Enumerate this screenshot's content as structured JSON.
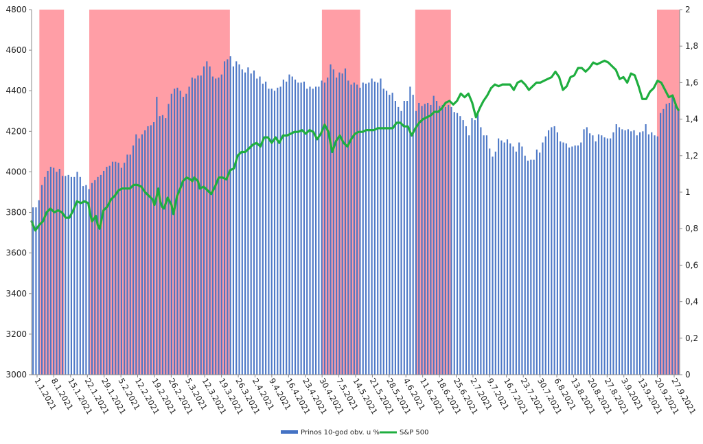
{
  "chart_data": {
    "type": "bar+line",
    "title": "",
    "y_left": {
      "min": 3000,
      "max": 4800,
      "step": 200,
      "ticks": [
        "3000",
        "3200",
        "3400",
        "3600",
        "3800",
        "4000",
        "4200",
        "4400",
        "4600",
        "4800"
      ]
    },
    "y_right": {
      "min": 0,
      "max": 2,
      "step": 0.2,
      "ticks": [
        "0",
        "0,2",
        "0,4",
        "0,6",
        "0,8",
        "1",
        "1,2",
        "1,4",
        "1,6",
        "1,8",
        "2"
      ]
    },
    "x_labels": [
      "1.1.2021",
      "8.1.2021",
      "15.1.2021",
      "22.1.2021",
      "29.1.2021",
      "5.2.2021",
      "12.2.2021",
      "19.2.2021",
      "26.2.2021",
      "5.3.2021",
      "12.3.2021",
      "19.3.2021",
      "26.3.2021",
      "2.4.2021",
      "9.4.2021",
      "16.4.2021",
      "23.4.2021",
      "30.4.2021",
      "7.5.2021",
      "14.5.2021",
      "21.5.2021",
      "28.5.2021",
      "4.6.2021",
      "11.6.2021",
      "18.6.2021",
      "25.6.2021",
      "2.7.2021",
      "9.7.2021",
      "16.7.2021",
      "23.7.2021",
      "30.7.2021",
      "6.8.2021",
      "13.8.2021",
      "20.8.2021",
      "27.8.2021",
      "3.9.2021",
      "13.9.2021",
      "20.9.2021",
      "27.9.2021"
    ],
    "bar_series": {
      "name": "Prinos 10-god obv. u %",
      "color": "#4472C4",
      "axis": "left",
      "values": [
        3825,
        3825,
        3860,
        3935,
        3975,
        4005,
        4025,
        4020,
        4000,
        4015,
        3980,
        3980,
        3985,
        3975,
        3975,
        4000,
        3975,
        3930,
        3935,
        3915,
        3945,
        3960,
        3975,
        3985,
        4005,
        4025,
        4030,
        4050,
        4050,
        4045,
        4020,
        4045,
        4085,
        4085,
        4130,
        4185,
        4165,
        4185,
        4205,
        4225,
        4230,
        4245,
        4370,
        4275,
        4280,
        4265,
        4335,
        4385,
        4410,
        4415,
        4400,
        4370,
        4385,
        4420,
        4465,
        4460,
        4475,
        4475,
        4520,
        4545,
        4520,
        4470,
        4460,
        4465,
        4480,
        4545,
        4555,
        4570,
        4520,
        4545,
        4530,
        4505,
        4490,
        4515,
        4485,
        4500,
        4460,
        4470,
        4435,
        4445,
        4410,
        4410,
        4400,
        4415,
        4420,
        4455,
        4445,
        4480,
        4470,
        4455,
        4440,
        4440,
        4445,
        4410,
        4420,
        4410,
        4420,
        4420,
        4450,
        4440,
        4465,
        4530,
        4505,
        4465,
        4490,
        4485,
        4510,
        4450,
        4430,
        4440,
        4430,
        4415,
        4440,
        4435,
        4440,
        4460,
        4445,
        4440,
        4460,
        4410,
        4400,
        4380,
        4390,
        4350,
        4320,
        4300,
        4350,
        4350,
        4420,
        4380,
        4300,
        4340,
        4325,
        4335,
        4340,
        4330,
        4375,
        4350,
        4325,
        4330,
        4320,
        4330,
        4320,
        4295,
        4290,
        4275,
        4255,
        4225,
        4180,
        4265,
        4255,
        4285,
        4220,
        4180,
        4180,
        4115,
        4075,
        4100,
        4165,
        4155,
        4145,
        4160,
        4140,
        4125,
        4100,
        4145,
        4125,
        4080,
        4055,
        4060,
        4060,
        4110,
        4095,
        4145,
        4175,
        4205,
        4220,
        4225,
        4195,
        4150,
        4145,
        4140,
        4120,
        4125,
        4130,
        4130,
        4145,
        4210,
        4220,
        4190,
        4180,
        4150,
        4185,
        4180,
        4170,
        4165,
        4165,
        4195,
        4235,
        4220,
        4210,
        4205,
        4210,
        4200,
        4205,
        4180,
        4195,
        4200,
        4235,
        4185,
        4195,
        4180,
        4175,
        4290,
        4310,
        4335,
        4340,
        4370,
        4330,
        4310
      ]
    },
    "line_series": {
      "name": "S&P 500",
      "color": "#1FAE3F",
      "axis": "right",
      "points": [
        [
          0,
          0.84
        ],
        [
          2,
          0.79
        ],
        [
          4,
          0.82
        ],
        [
          6,
          0.84
        ],
        [
          8,
          0.89
        ],
        [
          10,
          0.91
        ],
        [
          12,
          0.89
        ],
        [
          14,
          0.9
        ],
        [
          16,
          0.89
        ],
        [
          18,
          0.86
        ],
        [
          20,
          0.86
        ],
        [
          22,
          0.9
        ],
        [
          24,
          0.95
        ],
        [
          26,
          0.94
        ],
        [
          28,
          0.95
        ],
        [
          30,
          0.94
        ],
        [
          31,
          0.88
        ],
        [
          32,
          0.84
        ],
        [
          34,
          0.87
        ],
        [
          35,
          0.82
        ],
        [
          36,
          0.8
        ],
        [
          38,
          0.9
        ],
        [
          40,
          0.92
        ],
        [
          42,
          0.96
        ],
        [
          44,
          0.98
        ],
        [
          46,
          1.01
        ],
        [
          48,
          1.02
        ],
        [
          50,
          1.02
        ],
        [
          52,
          1.02
        ],
        [
          54,
          1.04
        ],
        [
          56,
          1.04
        ],
        [
          58,
          1.03
        ],
        [
          60,
          1.0
        ],
        [
          62,
          0.98
        ],
        [
          64,
          0.96
        ],
        [
          65,
          0.93
        ],
        [
          66,
          0.97
        ],
        [
          67,
          1.02
        ],
        [
          68,
          0.95
        ],
        [
          69,
          0.92
        ],
        [
          70,
          0.91
        ],
        [
          72,
          0.97
        ],
        [
          74,
          0.93
        ],
        [
          75,
          0.88
        ],
        [
          76,
          0.93
        ],
        [
          77,
          0.98
        ],
        [
          79,
          1.03
        ],
        [
          80,
          1.06
        ],
        [
          82,
          1.08
        ],
        [
          84,
          1.07
        ],
        [
          85,
          1.06
        ],
        [
          86,
          1.08
        ],
        [
          88,
          1.06
        ],
        [
          89,
          1.02
        ],
        [
          91,
          1.03
        ],
        [
          93,
          1.01
        ],
        [
          95,
          0.99
        ],
        [
          97,
          1.03
        ],
        [
          99,
          1.08
        ],
        [
          101,
          1.08
        ],
        [
          103,
          1.07
        ],
        [
          105,
          1.12
        ],
        [
          107,
          1.13
        ],
        [
          109,
          1.2
        ],
        [
          111,
          1.22
        ],
        [
          113,
          1.22
        ],
        [
          115,
          1.24
        ],
        [
          117,
          1.26
        ],
        [
          119,
          1.27
        ],
        [
          121,
          1.25
        ],
        [
          123,
          1.3
        ],
        [
          125,
          1.3
        ],
        [
          127,
          1.27
        ],
        [
          129,
          1.3
        ],
        [
          131,
          1.27
        ],
        [
          133,
          1.31
        ],
        [
          135,
          1.31
        ],
        [
          137,
          1.32
        ],
        [
          139,
          1.33
        ],
        [
          141,
          1.33
        ],
        [
          143,
          1.34
        ],
        [
          145,
          1.32
        ],
        [
          147,
          1.34
        ],
        [
          149,
          1.33
        ],
        [
          151,
          1.29
        ],
        [
          153,
          1.32
        ],
        [
          155,
          1.37
        ],
        [
          157,
          1.33
        ],
        [
          159,
          1.22
        ],
        [
          161,
          1.28
        ],
        [
          163,
          1.31
        ],
        [
          165,
          1.27
        ],
        [
          167,
          1.25
        ],
        [
          169,
          1.29
        ],
        [
          171,
          1.32
        ],
        [
          173,
          1.33
        ],
        [
          175,
          1.33
        ],
        [
          177,
          1.34
        ],
        [
          179,
          1.34
        ],
        [
          181,
          1.34
        ],
        [
          183,
          1.35
        ],
        [
          185,
          1.35
        ],
        [
          187,
          1.35
        ],
        [
          189,
          1.35
        ],
        [
          191,
          1.35
        ],
        [
          193,
          1.38
        ],
        [
          195,
          1.38
        ],
        [
          197,
          1.36
        ],
        [
          199,
          1.36
        ],
        [
          201,
          1.31
        ],
        [
          203,
          1.35
        ],
        [
          205,
          1.38
        ],
        [
          207,
          1.4
        ],
        [
          209,
          1.41
        ],
        [
          211,
          1.42
        ],
        [
          213,
          1.44
        ],
        [
          215,
          1.44
        ],
        [
          217,
          1.46
        ],
        [
          219,
          1.49
        ],
        [
          221,
          1.5
        ],
        [
          223,
          1.48
        ],
        [
          225,
          1.5
        ],
        [
          227,
          1.54
        ],
        [
          229,
          1.52
        ],
        [
          231,
          1.54
        ],
        [
          233,
          1.49
        ],
        [
          235,
          1.41
        ],
        [
          237,
          1.46
        ],
        [
          239,
          1.5
        ],
        [
          241,
          1.53
        ],
        [
          243,
          1.57
        ],
        [
          245,
          1.59
        ],
        [
          247,
          1.58
        ],
        [
          249,
          1.59
        ],
        [
          251,
          1.59
        ],
        [
          253,
          1.59
        ],
        [
          255,
          1.56
        ],
        [
          257,
          1.6
        ],
        [
          259,
          1.61
        ],
        [
          261,
          1.59
        ],
        [
          263,
          1.56
        ],
        [
          265,
          1.58
        ],
        [
          267,
          1.6
        ],
        [
          269,
          1.6
        ],
        [
          271,
          1.61
        ],
        [
          273,
          1.62
        ],
        [
          275,
          1.63
        ],
        [
          277,
          1.66
        ],
        [
          279,
          1.63
        ],
        [
          281,
          1.56
        ],
        [
          283,
          1.58
        ],
        [
          285,
          1.63
        ],
        [
          287,
          1.64
        ],
        [
          289,
          1.68
        ],
        [
          291,
          1.68
        ],
        [
          293,
          1.66
        ],
        [
          295,
          1.68
        ],
        [
          297,
          1.71
        ],
        [
          299,
          1.7
        ],
        [
          301,
          1.71
        ],
        [
          303,
          1.72
        ],
        [
          305,
          1.71
        ],
        [
          307,
          1.69
        ],
        [
          309,
          1.67
        ],
        [
          311,
          1.62
        ],
        [
          313,
          1.63
        ],
        [
          315,
          1.6
        ],
        [
          317,
          1.65
        ],
        [
          319,
          1.64
        ],
        [
          321,
          1.58
        ],
        [
          323,
          1.51
        ],
        [
          325,
          1.51
        ],
        [
          327,
          1.55
        ],
        [
          329,
          1.57
        ],
        [
          331,
          1.61
        ],
        [
          333,
          1.6
        ],
        [
          335,
          1.56
        ],
        [
          337,
          1.52
        ],
        [
          339,
          1.53
        ],
        [
          341,
          1.47
        ],
        [
          342,
          1.45
        ]
      ]
    },
    "shaded_ranges": [
      [
        0.012,
        0.05
      ],
      [
        0.089,
        0.306
      ],
      [
        0.448,
        0.507
      ],
      [
        0.592,
        0.647
      ],
      [
        0.965,
        1.0
      ]
    ],
    "shade_color": "#FF9EA6"
  }
}
